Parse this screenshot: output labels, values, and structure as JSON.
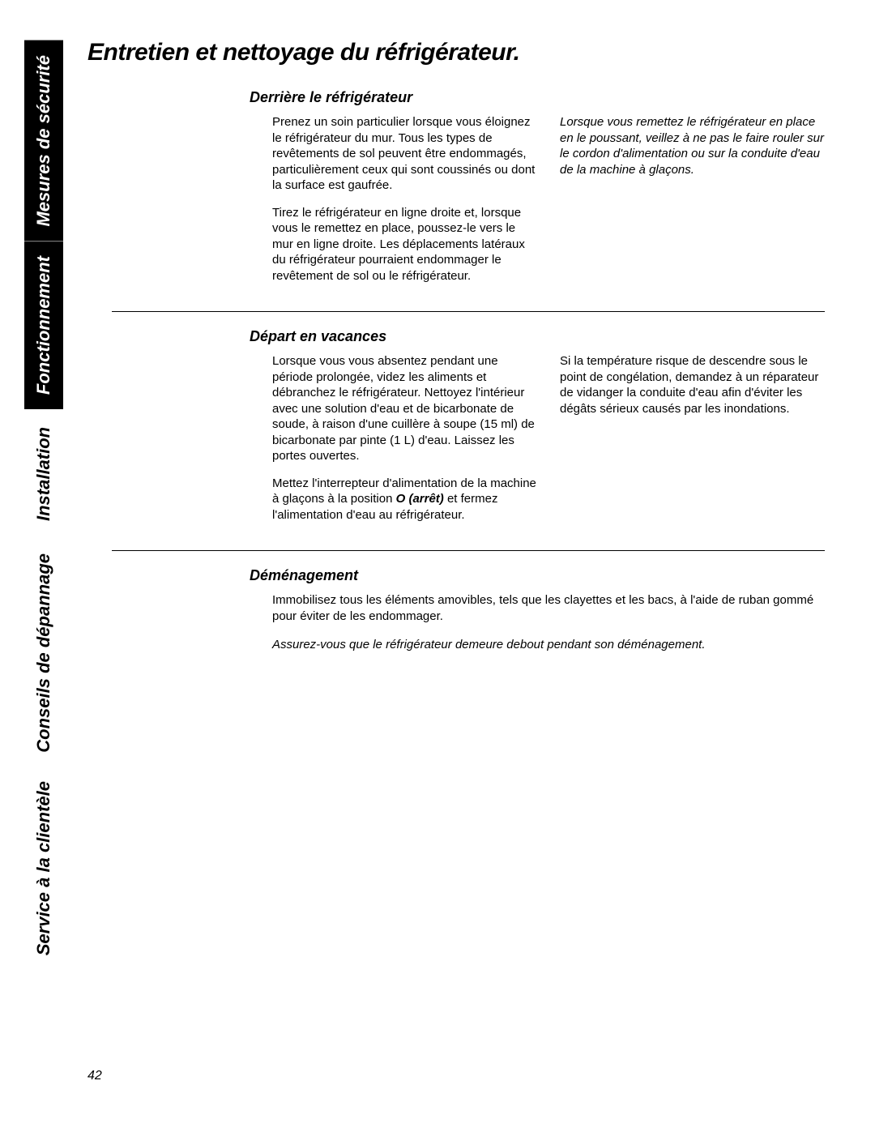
{
  "tabs": {
    "t0": "Mesures de sécurité",
    "t1": "Fonctionnement",
    "t2": "Installation",
    "t3": "Conseils de dépannage",
    "t4": "Service à la clientèle"
  },
  "title": "Entretien et nettoyage du réfrigérateur.",
  "section1": {
    "heading": "Derrière le réfrigérateur",
    "left_p1": "Prenez un soin particulier lorsque vous éloignez le réfrigérateur du mur. Tous les types de revêtements de sol peuvent être endommagés, particulièrement ceux qui sont coussinés ou dont la surface est gaufrée.",
    "left_p2": "Tirez le réfrigérateur en ligne droite et, lorsque vous le remettez en place, poussez-le vers le mur en ligne droite. Les déplacements latéraux du réfrigérateur pourraient endommager le revêtement de sol ou le réfrigérateur.",
    "right_p1": "Lorsque vous remettez le réfrigérateur en place en le poussant, veillez à ne pas le faire rouler sur le cordon d'alimentation ou sur la conduite d'eau de la machine à glaçons."
  },
  "section2": {
    "heading": "Départ en vacances",
    "left_p1": "Lorsque vous vous absentez pendant une période prolongée, videz les aliments et débranchez le réfrigérateur. Nettoyez l'intérieur avec une solution d'eau et de bicarbonate de soude, à raison d'une cuillère à soupe (15 ml) de bicarbonate par pinte (1 L) d'eau. Laissez les portes ouvertes.",
    "left_p2a": "Mettez l'interrepteur d'alimentation de la machine à glaçons à la position ",
    "left_p2_bold": "O (arrêt)",
    "left_p2b": " et fermez l'alimentation d'eau au réfrigérateur.",
    "right_p1": "Si la température risque de descendre sous le point de congélation, demandez à un réparateur de vidanger la conduite d'eau afin d'éviter les dégâts sérieux causés par les inondations."
  },
  "section3": {
    "heading": "Déménagement",
    "p1": "Immobilisez tous les éléments amovibles, tels que les clayettes et les bacs, à l'aide de ruban gommé pour éviter de les endommager.",
    "p2": "Assurez-vous que le réfrigérateur demeure debout pendant son déménagement."
  },
  "page_number": "42",
  "colors": {
    "text": "#000000",
    "bg": "#ffffff",
    "tab_active_bg": "#000000",
    "tab_active_fg": "#ffffff"
  }
}
